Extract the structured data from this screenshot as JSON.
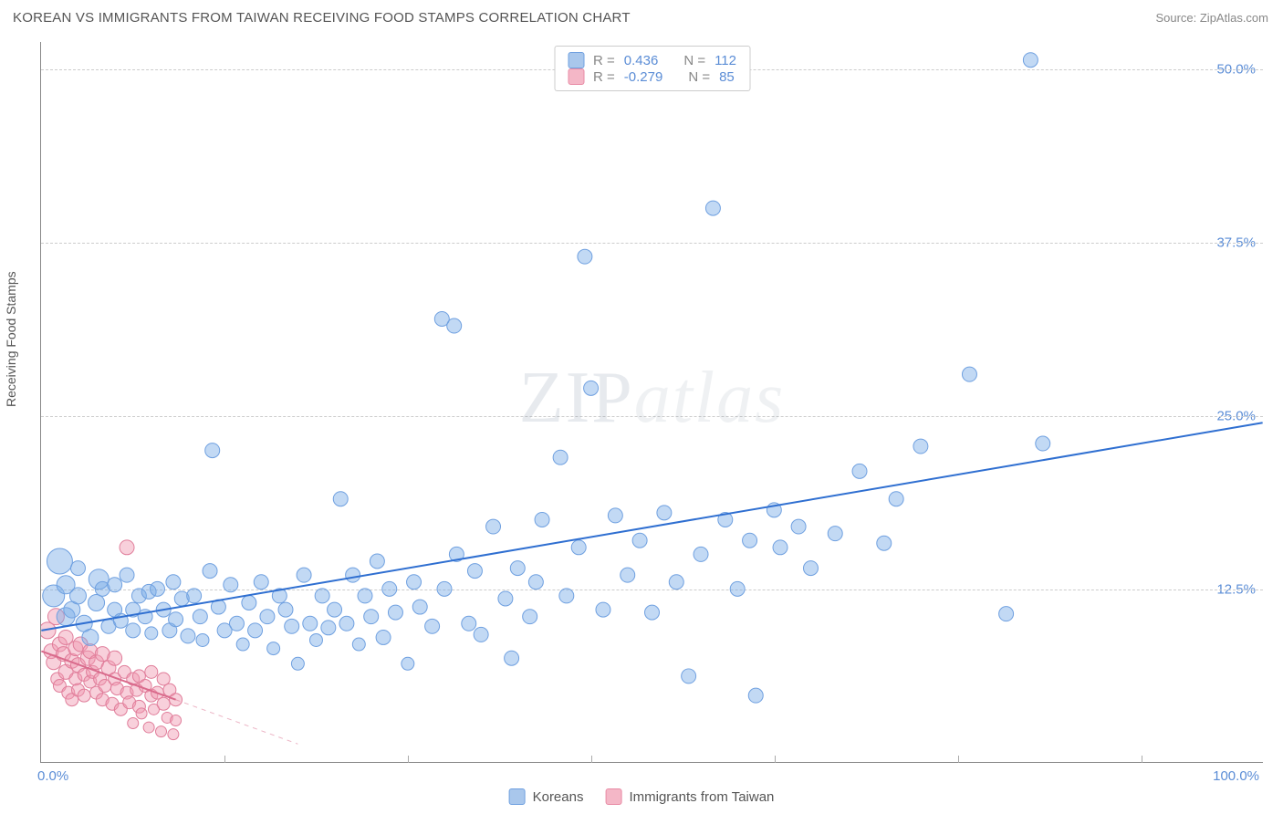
{
  "header": {
    "title": "KOREAN VS IMMIGRANTS FROM TAIWAN RECEIVING FOOD STAMPS CORRELATION CHART",
    "source_prefix": "Source: ",
    "source": "ZipAtlas.com"
  },
  "axes": {
    "ylabel": "Receiving Food Stamps",
    "xlim": [
      0,
      100
    ],
    "ylim": [
      0,
      52
    ],
    "xticks": [
      {
        "v": 0,
        "label": "0.0%"
      },
      {
        "v": 100,
        "label": "100.0%"
      }
    ],
    "yticks": [
      {
        "v": 12.5,
        "label": "12.5%"
      },
      {
        "v": 25.0,
        "label": "25.0%"
      },
      {
        "v": 37.5,
        "label": "37.5%"
      },
      {
        "v": 50.0,
        "label": "50.0%"
      }
    ],
    "vgrids": [
      15,
      30,
      45,
      60,
      75,
      90
    ],
    "label_color": "#5b8dd6",
    "grid_color": "#d9d9d9"
  },
  "legend_top": {
    "rows": [
      {
        "swatch": "#a9c7ec",
        "border": "#6fa0e0",
        "r_label": "R =",
        "r": "0.436",
        "n_label": "N =",
        "n": "112",
        "value_color": "#5b8dd6"
      },
      {
        "swatch": "#f4b7c7",
        "border": "#e88ba5",
        "r_label": "R =",
        "r": "-0.279",
        "n_label": "N =",
        "n": "85",
        "value_color": "#5b8dd6"
      }
    ]
  },
  "legend_bottom": {
    "items": [
      {
        "swatch": "#a9c7ec",
        "border": "#6fa0e0",
        "label": "Koreans"
      },
      {
        "swatch": "#f4b7c7",
        "border": "#e88ba5",
        "label": "Immigrants from Taiwan"
      }
    ]
  },
  "watermark": {
    "part1": "ZIP",
    "part2": "atlas"
  },
  "series": {
    "blue": {
      "fill": "rgba(120,170,230,0.45)",
      "stroke": "#6fa0e0",
      "r_base": 8,
      "trend": {
        "color": "#2f6fd1",
        "width": 2,
        "x1": 0,
        "y1": 9.5,
        "x2": 100,
        "y2": 24.5
      },
      "points": [
        [
          1,
          12,
          12
        ],
        [
          1.5,
          14.5,
          14
        ],
        [
          2,
          10.5,
          10
        ],
        [
          2,
          12.8,
          10
        ],
        [
          2.5,
          11,
          9
        ],
        [
          3,
          12,
          9
        ],
        [
          3,
          14,
          8
        ],
        [
          3.5,
          10,
          9
        ],
        [
          4,
          9,
          9
        ],
        [
          4.5,
          11.5,
          9
        ],
        [
          4.7,
          13.2,
          11
        ],
        [
          5,
          12.5,
          8
        ],
        [
          5.5,
          9.8,
          8
        ],
        [
          6,
          11,
          8
        ],
        [
          6,
          12.8,
          8
        ],
        [
          6.5,
          10.2,
          8
        ],
        [
          7,
          13.5,
          8
        ],
        [
          7.5,
          11,
          8
        ],
        [
          7.5,
          9.5,
          8
        ],
        [
          8,
          12,
          8
        ],
        [
          8.5,
          10.5,
          8
        ],
        [
          8.8,
          12.3,
          8
        ],
        [
          9,
          9.3,
          7
        ],
        [
          9.5,
          12.5,
          8
        ],
        [
          10,
          11,
          8
        ],
        [
          10.5,
          9.5,
          8
        ],
        [
          10.8,
          13,
          8
        ],
        [
          11,
          10.3,
          8
        ],
        [
          11.5,
          11.8,
          8
        ],
        [
          12,
          9.1,
          8
        ],
        [
          12.5,
          12,
          8
        ],
        [
          13,
          10.5,
          8
        ],
        [
          13.2,
          8.8,
          7
        ],
        [
          13.8,
          13.8,
          8
        ],
        [
          14,
          22.5,
          8
        ],
        [
          14.5,
          11.2,
          8
        ],
        [
          15,
          9.5,
          8
        ],
        [
          15.5,
          12.8,
          8
        ],
        [
          16,
          10,
          8
        ],
        [
          16.5,
          8.5,
          7
        ],
        [
          17,
          11.5,
          8
        ],
        [
          17.5,
          9.5,
          8
        ],
        [
          18,
          13,
          8
        ],
        [
          18.5,
          10.5,
          8
        ],
        [
          19,
          8.2,
          7
        ],
        [
          19.5,
          12,
          8
        ],
        [
          20,
          11,
          8
        ],
        [
          20.5,
          9.8,
          8
        ],
        [
          21,
          7.1,
          7
        ],
        [
          21.5,
          13.5,
          8
        ],
        [
          22,
          10,
          8
        ],
        [
          22.5,
          8.8,
          7
        ],
        [
          23,
          12,
          8
        ],
        [
          23.5,
          9.7,
          8
        ],
        [
          24,
          11,
          8
        ],
        [
          24.5,
          19,
          8
        ],
        [
          25,
          10,
          8
        ],
        [
          25.5,
          13.5,
          8
        ],
        [
          26,
          8.5,
          7
        ],
        [
          26.5,
          12,
          8
        ],
        [
          27,
          10.5,
          8
        ],
        [
          27.5,
          14.5,
          8
        ],
        [
          28,
          9,
          8
        ],
        [
          28.5,
          12.5,
          8
        ],
        [
          29,
          10.8,
          8
        ],
        [
          30,
          7.1,
          7
        ],
        [
          30.5,
          13,
          8
        ],
        [
          31,
          11.2,
          8
        ],
        [
          32,
          9.8,
          8
        ],
        [
          32.8,
          32,
          8
        ],
        [
          33,
          12.5,
          8
        ],
        [
          33.8,
          31.5,
          8
        ],
        [
          34,
          15,
          8
        ],
        [
          35,
          10,
          8
        ],
        [
          35.5,
          13.8,
          8
        ],
        [
          36,
          9.2,
          8
        ],
        [
          37,
          17,
          8
        ],
        [
          38,
          11.8,
          8
        ],
        [
          38.5,
          7.5,
          8
        ],
        [
          39,
          14,
          8
        ],
        [
          40,
          10.5,
          8
        ],
        [
          40.5,
          13,
          8
        ],
        [
          41,
          17.5,
          8
        ],
        [
          42.5,
          22,
          8
        ],
        [
          43,
          12,
          8
        ],
        [
          44,
          15.5,
          8
        ],
        [
          44.5,
          36.5,
          8
        ],
        [
          45,
          27,
          8
        ],
        [
          46,
          11,
          8
        ],
        [
          47,
          17.8,
          8
        ],
        [
          48,
          13.5,
          8
        ],
        [
          49,
          16,
          8
        ],
        [
          50,
          10.8,
          8
        ],
        [
          51,
          18,
          8
        ],
        [
          52,
          13,
          8
        ],
        [
          53,
          6.2,
          8
        ],
        [
          54,
          15,
          8
        ],
        [
          55,
          40,
          8
        ],
        [
          56,
          17.5,
          8
        ],
        [
          57,
          12.5,
          8
        ],
        [
          58,
          16,
          8
        ],
        [
          58.5,
          4.8,
          8
        ],
        [
          60,
          18.2,
          8
        ],
        [
          60.5,
          15.5,
          8
        ],
        [
          62,
          17,
          8
        ],
        [
          63,
          14,
          8
        ],
        [
          65,
          16.5,
          8
        ],
        [
          67,
          21,
          8
        ],
        [
          69,
          15.8,
          8
        ],
        [
          70,
          19,
          8
        ],
        [
          72,
          22.8,
          8
        ],
        [
          76,
          28,
          8
        ],
        [
          79,
          10.7,
          8
        ],
        [
          81,
          50.7,
          8
        ],
        [
          82,
          23,
          8
        ]
      ]
    },
    "pink": {
      "fill": "rgba(240,150,175,0.45)",
      "stroke": "#e07d9a",
      "r_base": 7,
      "trend_solid": {
        "color": "#d96b8c",
        "width": 2,
        "x1": 0,
        "y1": 8.0,
        "x2": 11,
        "y2": 4.5
      },
      "trend_dash": {
        "color": "rgba(217,107,140,0.5)",
        "width": 1,
        "dash": "5 5",
        "x1": 11,
        "y1": 4.5,
        "x2": 21,
        "y2": 1.3
      },
      "points": [
        [
          0.5,
          9.5,
          9
        ],
        [
          0.8,
          8,
          8
        ],
        [
          1,
          7.2,
          8
        ],
        [
          1.2,
          10.5,
          9
        ],
        [
          1.3,
          6,
          7
        ],
        [
          1.5,
          8.5,
          8
        ],
        [
          1.5,
          5.5,
          7
        ],
        [
          1.8,
          7.8,
          8
        ],
        [
          2,
          6.5,
          8
        ],
        [
          2,
          9,
          8
        ],
        [
          2.2,
          5,
          7
        ],
        [
          2.5,
          7.3,
          8
        ],
        [
          2.5,
          4.5,
          7
        ],
        [
          2.8,
          8.2,
          8
        ],
        [
          2.8,
          6,
          7
        ],
        [
          3,
          7,
          8
        ],
        [
          3,
          5.2,
          7
        ],
        [
          3.2,
          8.5,
          8
        ],
        [
          3.5,
          6.3,
          7
        ],
        [
          3.5,
          4.8,
          7
        ],
        [
          3.8,
          7.5,
          8
        ],
        [
          4,
          5.8,
          7
        ],
        [
          4,
          8,
          8
        ],
        [
          4.2,
          6.5,
          7
        ],
        [
          4.5,
          5,
          7
        ],
        [
          4.5,
          7.2,
          8
        ],
        [
          4.8,
          6,
          7
        ],
        [
          5,
          4.5,
          7
        ],
        [
          5,
          7.8,
          8
        ],
        [
          5.2,
          5.5,
          7
        ],
        [
          5.5,
          6.8,
          8
        ],
        [
          5.8,
          4.2,
          7
        ],
        [
          6,
          6,
          7
        ],
        [
          6,
          7.5,
          8
        ],
        [
          6.2,
          5.3,
          7
        ],
        [
          6.5,
          3.8,
          7
        ],
        [
          6.8,
          6.5,
          7
        ],
        [
          7,
          5,
          7
        ],
        [
          7,
          15.5,
          8
        ],
        [
          7.2,
          4.3,
          7
        ],
        [
          7.5,
          6,
          7
        ],
        [
          7.5,
          2.8,
          6
        ],
        [
          7.8,
          5.2,
          7
        ],
        [
          8,
          4,
          7
        ],
        [
          8,
          6.2,
          7
        ],
        [
          8.2,
          3.5,
          6
        ],
        [
          8.5,
          5.5,
          7
        ],
        [
          8.8,
          2.5,
          6
        ],
        [
          9,
          4.8,
          7
        ],
        [
          9,
          6.5,
          7
        ],
        [
          9.2,
          3.8,
          6
        ],
        [
          9.5,
          5,
          7
        ],
        [
          9.8,
          2.2,
          6
        ],
        [
          10,
          4.2,
          7
        ],
        [
          10,
          6,
          7
        ],
        [
          10.3,
          3.2,
          6
        ],
        [
          10.5,
          5.2,
          7
        ],
        [
          10.8,
          2,
          6
        ],
        [
          11,
          4.5,
          7
        ],
        [
          11,
          3,
          6
        ]
      ]
    }
  }
}
